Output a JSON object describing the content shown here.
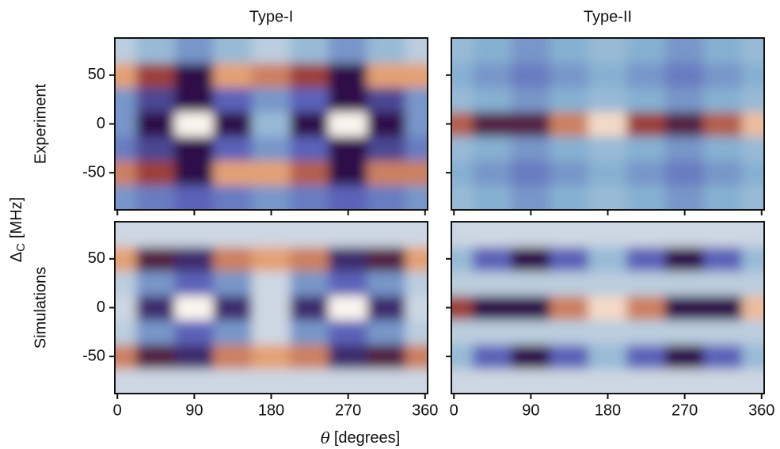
{
  "ylabel": [
    "Δ",
    "C",
    "[MHz]"
  ],
  "xlabel": [
    "θ",
    "[degrees]"
  ],
  "colormap": [
    [
      0,
      "#dfe1e7"
    ],
    [
      0.25,
      "#86b0d2"
    ],
    [
      0.4,
      "#5b62b8"
    ],
    [
      0.55,
      "#2e1148"
    ],
    [
      0.7,
      "#9c3f3a"
    ],
    [
      0.85,
      "#e4a075"
    ],
    [
      1,
      "#fcf5ee"
    ]
  ],
  "chart_data": [
    {
      "type": "heatmap",
      "title": "Type-I",
      "row_label": "Experiment",
      "x": [
        0,
        45,
        90,
        135,
        180,
        225,
        270,
        315,
        360
      ],
      "y": [
        -75,
        -50,
        -25,
        0,
        25,
        50,
        75
      ],
      "z": [
        [
          0.3,
          0.35,
          0.4,
          0.35,
          0.3,
          0.35,
          0.4,
          0.35,
          0.3
        ],
        [
          0.8,
          0.7,
          0.55,
          0.85,
          0.85,
          0.75,
          0.55,
          0.8,
          0.8
        ],
        [
          0.35,
          0.45,
          0.55,
          0.4,
          0.3,
          0.4,
          0.55,
          0.45,
          0.35
        ],
        [
          0.3,
          0.55,
          1,
          0.55,
          0.2,
          0.55,
          1,
          0.55,
          0.3
        ],
        [
          0.3,
          0.45,
          0.55,
          0.4,
          0.3,
          0.4,
          0.55,
          0.45,
          0.3
        ],
        [
          0.85,
          0.7,
          0.55,
          0.85,
          0.8,
          0.7,
          0.55,
          0.85,
          0.85
        ],
        [
          0.1,
          0.2,
          0.3,
          0.2,
          0.1,
          0.2,
          0.3,
          0.2,
          0.1
        ]
      ],
      "xlim": [
        -3,
        363
      ],
      "ylim": [
        -88,
        88
      ],
      "xticks": [
        0,
        90,
        180,
        270,
        360
      ],
      "yticks": [
        -50,
        0,
        50
      ],
      "show_xticklabels": false,
      "show_yticklabels": true
    },
    {
      "type": "heatmap",
      "title": "Type-II",
      "x": [
        0,
        45,
        90,
        135,
        180,
        225,
        270,
        315,
        360
      ],
      "y": [
        -75,
        -50,
        -25,
        0,
        25,
        50,
        75
      ],
      "z": [
        [
          0.2,
          0.25,
          0.3,
          0.25,
          0.2,
          0.25,
          0.3,
          0.25,
          0.2
        ],
        [
          0.25,
          0.3,
          0.35,
          0.3,
          0.25,
          0.3,
          0.35,
          0.3,
          0.25
        ],
        [
          0.2,
          0.25,
          0.3,
          0.25,
          0.2,
          0.25,
          0.3,
          0.25,
          0.2
        ],
        [
          0.75,
          0.6,
          0.6,
          0.8,
          0.95,
          0.7,
          0.6,
          0.75,
          0.9
        ],
        [
          0.2,
          0.25,
          0.3,
          0.25,
          0.2,
          0.25,
          0.3,
          0.25,
          0.2
        ],
        [
          0.25,
          0.3,
          0.35,
          0.3,
          0.25,
          0.3,
          0.35,
          0.3,
          0.25
        ],
        [
          0.2,
          0.25,
          0.3,
          0.25,
          0.2,
          0.25,
          0.3,
          0.25,
          0.2
        ]
      ],
      "xlim": [
        -3,
        363
      ],
      "ylim": [
        -88,
        88
      ],
      "xticks": [
        0,
        90,
        180,
        270,
        360
      ],
      "yticks": [
        -50,
        0,
        50
      ],
      "show_xticklabels": false,
      "show_yticklabels": false
    },
    {
      "type": "heatmap",
      "row_label": "Simulations",
      "x": [
        0,
        45,
        90,
        135,
        180,
        225,
        270,
        315,
        360
      ],
      "y": [
        -75,
        -50,
        -25,
        0,
        25,
        50,
        75
      ],
      "z": [
        [
          0.05,
          0.05,
          0.05,
          0.05,
          0.05,
          0.05,
          0.05,
          0.05,
          0.05
        ],
        [
          0.8,
          0.6,
          0.5,
          0.8,
          0.85,
          0.8,
          0.5,
          0.6,
          0.8
        ],
        [
          0.1,
          0.3,
          0.4,
          0.3,
          0.05,
          0.3,
          0.4,
          0.3,
          0.1
        ],
        [
          0.05,
          0.5,
          1,
          0.5,
          0.05,
          0.5,
          1,
          0.5,
          0.05
        ],
        [
          0.1,
          0.3,
          0.4,
          0.3,
          0.05,
          0.3,
          0.4,
          0.3,
          0.1
        ],
        [
          0.85,
          0.6,
          0.5,
          0.8,
          0.85,
          0.8,
          0.5,
          0.6,
          0.85
        ],
        [
          0.05,
          0.05,
          0.05,
          0.05,
          0.05,
          0.05,
          0.05,
          0.05,
          0.05
        ]
      ],
      "xlim": [
        -3,
        363
      ],
      "ylim": [
        -88,
        88
      ],
      "xticks": [
        0,
        90,
        180,
        270,
        360
      ],
      "yticks": [
        -50,
        0,
        50
      ],
      "show_xticklabels": true,
      "show_yticklabels": true
    },
    {
      "type": "heatmap",
      "x": [
        0,
        45,
        90,
        135,
        180,
        225,
        270,
        315,
        360
      ],
      "y": [
        -75,
        -50,
        -25,
        0,
        25,
        50,
        75
      ],
      "z": [
        [
          0.05,
          0.05,
          0.05,
          0.05,
          0.05,
          0.05,
          0.05,
          0.05,
          0.05
        ],
        [
          0.2,
          0.4,
          0.55,
          0.4,
          0.2,
          0.4,
          0.55,
          0.4,
          0.2
        ],
        [
          0.1,
          0.1,
          0.1,
          0.1,
          0.1,
          0.1,
          0.1,
          0.1,
          0.1
        ],
        [
          0.7,
          0.55,
          0.55,
          0.8,
          0.95,
          0.8,
          0.55,
          0.55,
          0.9
        ],
        [
          0.1,
          0.1,
          0.1,
          0.1,
          0.1,
          0.1,
          0.1,
          0.1,
          0.1
        ],
        [
          0.2,
          0.4,
          0.55,
          0.4,
          0.2,
          0.4,
          0.55,
          0.4,
          0.2
        ],
        [
          0.05,
          0.05,
          0.05,
          0.05,
          0.05,
          0.05,
          0.05,
          0.05,
          0.05
        ]
      ],
      "xlim": [
        -3,
        363
      ],
      "ylim": [
        -88,
        88
      ],
      "xticks": [
        0,
        90,
        180,
        270,
        360
      ],
      "yticks": [
        -50,
        0,
        50
      ],
      "show_xticklabels": true,
      "show_yticklabels": false
    }
  ]
}
